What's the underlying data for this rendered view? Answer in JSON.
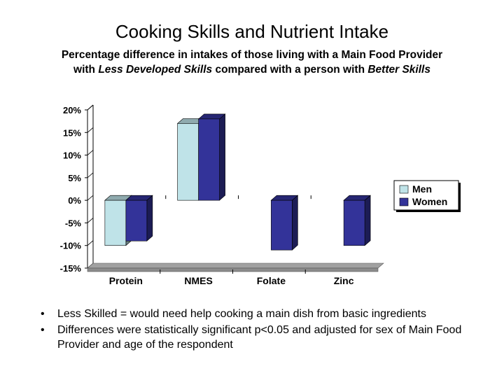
{
  "slide": {
    "title": "Cooking Skills and Nutrient Intake",
    "subtitle": {
      "line1": "Percentage difference in intakes of those living with a Main Food Provider",
      "line2_pre": "with ",
      "line2_em1": "Less Developed Skills",
      "line2_mid": " compared with a person with ",
      "line2_em2": "Better Skills"
    },
    "bullets": [
      "Less Skilled = would need help cooking a main dish from basic ingredients",
      "Differences were statistically significant p<0.05 and adjusted for sex of Main Food Provider and age of the respondent"
    ],
    "bullet_symbol": "•"
  },
  "chart_data": {
    "type": "bar",
    "categories": [
      "Protein",
      "NMES",
      "Folate",
      "Zinc"
    ],
    "series": [
      {
        "name": "Men",
        "values": [
          -10,
          17,
          null,
          null
        ],
        "color": "#bfe3e8"
      },
      {
        "name": "Women",
        "values": [
          -9,
          18,
          -11,
          -10
        ],
        "color": "#333399"
      }
    ],
    "y_ticks": [
      20,
      15,
      10,
      5,
      0,
      -5,
      -10,
      -15
    ],
    "y_tick_labels": [
      "20%",
      "15%",
      "10%",
      "5%",
      "0%",
      "-5%",
      "-10%",
      "-15%"
    ],
    "ylim": [
      -15,
      20
    ],
    "style": "3d",
    "grid": false,
    "legend": "right",
    "floor_color": "#8c8c8c"
  }
}
